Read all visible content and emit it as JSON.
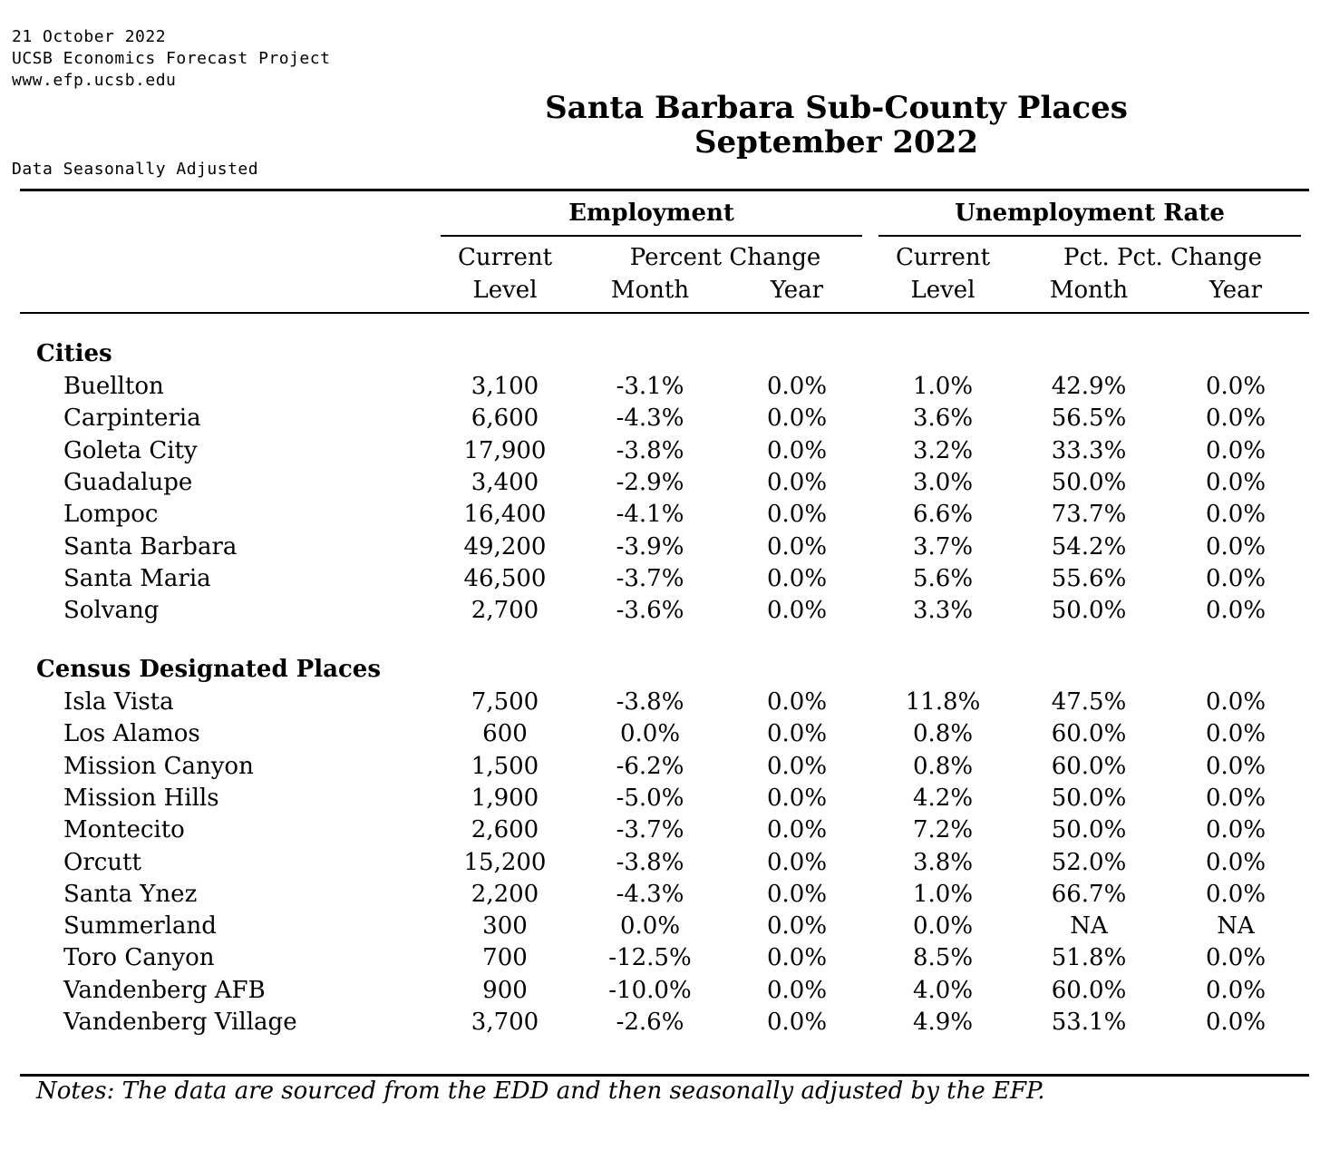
{
  "header": {
    "date": "21 October 2022",
    "org": "UCSB Economics Forecast Project",
    "url": "www.efp.ucsb.edu",
    "adjusted_note": "Data Seasonally Adjusted",
    "title_line1": "Santa Barbara Sub-County Places",
    "title_line2": "September 2022"
  },
  "columns": {
    "employment_group": "Employment",
    "unemployment_group": "Unemployment Rate",
    "emp_current_line1": "Current",
    "emp_current_line2": "Level",
    "emp_pct_change": "Percent Change",
    "emp_month": "Month",
    "emp_year": "Year",
    "ur_current_line1": "Current",
    "ur_current_line2": "Level",
    "ur_pct_change": "Pct. Pct. Change",
    "ur_month": "Month",
    "ur_year": "Year"
  },
  "sections": [
    {
      "title": "Cities",
      "rows": [
        [
          "Buellton",
          "3,100",
          "-3.1%",
          "0.0%",
          "1.0%",
          "42.9%",
          "0.0%"
        ],
        [
          "Carpinteria",
          "6,600",
          "-4.3%",
          "0.0%",
          "3.6%",
          "56.5%",
          "0.0%"
        ],
        [
          "Goleta City",
          "17,900",
          "-3.8%",
          "0.0%",
          "3.2%",
          "33.3%",
          "0.0%"
        ],
        [
          "Guadalupe",
          "3,400",
          "-2.9%",
          "0.0%",
          "3.0%",
          "50.0%",
          "0.0%"
        ],
        [
          "Lompoc",
          "16,400",
          "-4.1%",
          "0.0%",
          "6.6%",
          "73.7%",
          "0.0%"
        ],
        [
          "Santa Barbara",
          "49,200",
          "-3.9%",
          "0.0%",
          "3.7%",
          "54.2%",
          "0.0%"
        ],
        [
          "Santa Maria",
          "46,500",
          "-3.7%",
          "0.0%",
          "5.6%",
          "55.6%",
          "0.0%"
        ],
        [
          "Solvang",
          "2,700",
          "-3.6%",
          "0.0%",
          "3.3%",
          "50.0%",
          "0.0%"
        ]
      ]
    },
    {
      "title": "Census Designated Places",
      "rows": [
        [
          "Isla Vista",
          "7,500",
          "-3.8%",
          "0.0%",
          "11.8%",
          "47.5%",
          "0.0%"
        ],
        [
          "Los Alamos",
          "600",
          "0.0%",
          "0.0%",
          "0.8%",
          "60.0%",
          "0.0%"
        ],
        [
          "Mission Canyon",
          "1,500",
          "-6.2%",
          "0.0%",
          "0.8%",
          "60.0%",
          "0.0%"
        ],
        [
          "Mission Hills",
          "1,900",
          "-5.0%",
          "0.0%",
          "4.2%",
          "50.0%",
          "0.0%"
        ],
        [
          "Montecito",
          "2,600",
          "-3.7%",
          "0.0%",
          "7.2%",
          "50.0%",
          "0.0%"
        ],
        [
          "Orcutt",
          "15,200",
          "-3.8%",
          "0.0%",
          "3.8%",
          "52.0%",
          "0.0%"
        ],
        [
          "Santa Ynez",
          "2,200",
          "-4.3%",
          "0.0%",
          "1.0%",
          "66.7%",
          "0.0%"
        ],
        [
          "Summerland",
          "300",
          "0.0%",
          "0.0%",
          "0.0%",
          "NA",
          "NA"
        ],
        [
          "Toro Canyon",
          "700",
          "-12.5%",
          "0.0%",
          "8.5%",
          "51.8%",
          "0.0%"
        ],
        [
          "Vandenberg AFB",
          "900",
          "-10.0%",
          "0.0%",
          "4.0%",
          "60.0%",
          "0.0%"
        ],
        [
          "Vandenberg Village",
          "3,700",
          "-2.6%",
          "0.0%",
          "4.9%",
          "53.1%",
          "0.0%"
        ]
      ]
    }
  ],
  "notes": "Notes: The data are sourced from the EDD and then seasonally adjusted by the EFP."
}
